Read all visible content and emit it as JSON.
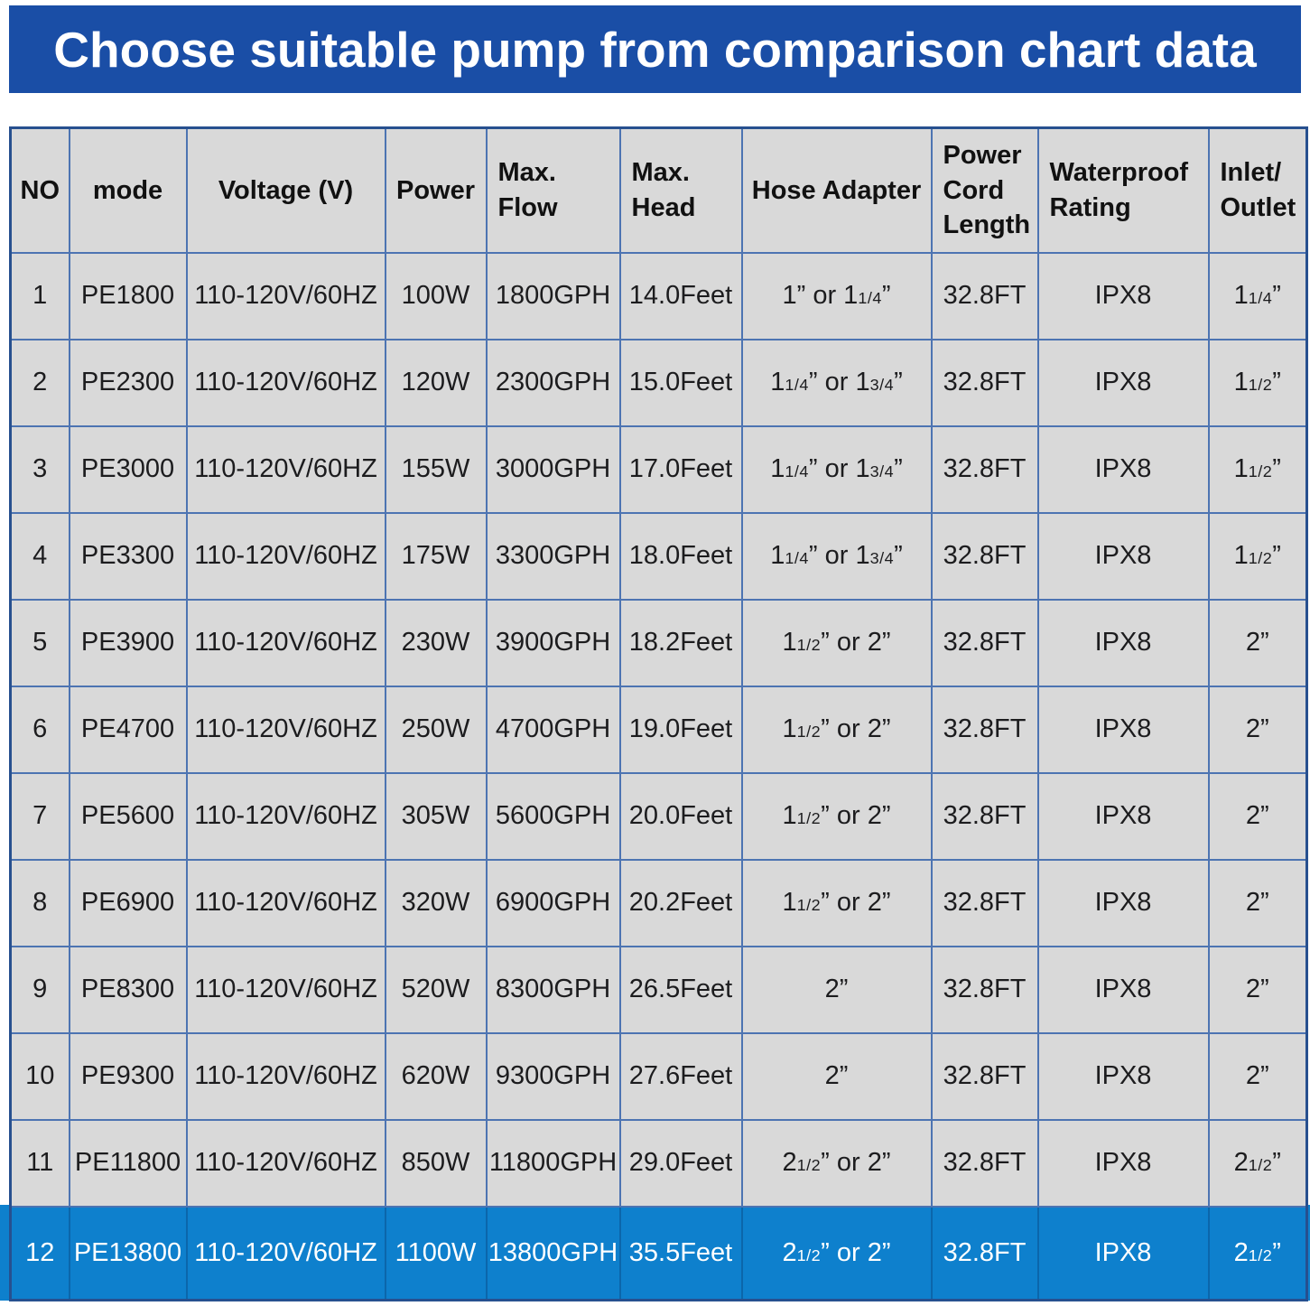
{
  "banner": {
    "title": "Choose suitable pump from comparison chart data"
  },
  "colors": {
    "banner_bg": "#1a4ea6",
    "banner_text": "#ffffff",
    "cell_bg": "#d9d9d9",
    "grid_line": "#4d74b2",
    "outer_border": "#27508f",
    "highlight_bg": "#0e80cd",
    "highlight_text": "#ffffff",
    "body_text": "#1c1c1e"
  },
  "chart_data": {
    "type": "table",
    "title": "Choose suitable pump from comparison chart data",
    "highlighted_row_no": "12",
    "columns": [
      {
        "label": "NO",
        "align": "center",
        "frac": false
      },
      {
        "label": "mode",
        "align": "center",
        "frac": false
      },
      {
        "label": "Voltage (V)",
        "align": "center",
        "frac": false
      },
      {
        "label": "Power",
        "align": "center",
        "frac": false
      },
      {
        "label": "Max.\nFlow",
        "align": "left",
        "frac": false
      },
      {
        "label": "Max.\nHead",
        "align": "left",
        "frac": false
      },
      {
        "label": "Hose Adapter",
        "align": "center",
        "frac": true
      },
      {
        "label": "Power\nCord\nLength",
        "align": "left",
        "frac": false
      },
      {
        "label": "Waterproof\nRating",
        "align": "left",
        "frac": false
      },
      {
        "label": "Inlet/\nOutlet",
        "align": "left",
        "frac": true
      }
    ],
    "rows": [
      {
        "highlight": false,
        "cells": [
          "1",
          "PE1800",
          "110-120V/60HZ",
          "100W",
          "1800GPH",
          "14.0Feet",
          "1” or 11/4”",
          "32.8FT",
          "IPX8",
          "11/4”"
        ]
      },
      {
        "highlight": false,
        "cells": [
          "2",
          "PE2300",
          "110-120V/60HZ",
          "120W",
          "2300GPH",
          "15.0Feet",
          "11/4” or 13/4”",
          "32.8FT",
          "IPX8",
          "11/2”"
        ]
      },
      {
        "highlight": false,
        "cells": [
          "3",
          "PE3000",
          "110-120V/60HZ",
          "155W",
          "3000GPH",
          "17.0Feet",
          "11/4” or 13/4”",
          "32.8FT",
          "IPX8",
          "11/2”"
        ]
      },
      {
        "highlight": false,
        "cells": [
          "4",
          "PE3300",
          "110-120V/60HZ",
          "175W",
          "3300GPH",
          "18.0Feet",
          "11/4” or 13/4”",
          "32.8FT",
          "IPX8",
          "11/2”"
        ]
      },
      {
        "highlight": false,
        "cells": [
          "5",
          "PE3900",
          "110-120V/60HZ",
          "230W",
          "3900GPH",
          "18.2Feet",
          "11/2” or 2”",
          "32.8FT",
          "IPX8",
          "2”"
        ]
      },
      {
        "highlight": false,
        "cells": [
          "6",
          "PE4700",
          "110-120V/60HZ",
          "250W",
          "4700GPH",
          "19.0Feet",
          "11/2” or 2”",
          "32.8FT",
          "IPX8",
          "2”"
        ]
      },
      {
        "highlight": false,
        "cells": [
          "7",
          "PE5600",
          "110-120V/60HZ",
          "305W",
          "5600GPH",
          "20.0Feet",
          "11/2” or 2”",
          "32.8FT",
          "IPX8",
          "2”"
        ]
      },
      {
        "highlight": false,
        "cells": [
          "8",
          "PE6900",
          "110-120V/60HZ",
          "320W",
          "6900GPH",
          "20.2Feet",
          "11/2” or 2”",
          "32.8FT",
          "IPX8",
          "2”"
        ]
      },
      {
        "highlight": false,
        "cells": [
          "9",
          "PE8300",
          "110-120V/60HZ",
          "520W",
          "8300GPH",
          "26.5Feet",
          "2”",
          "32.8FT",
          "IPX8",
          "2”"
        ]
      },
      {
        "highlight": false,
        "cells": [
          "10",
          "PE9300",
          "110-120V/60HZ",
          "620W",
          "9300GPH",
          "27.6Feet",
          "2”",
          "32.8FT",
          "IPX8",
          "2”"
        ]
      },
      {
        "highlight": false,
        "cells": [
          "11",
          "PE11800",
          "110-120V/60HZ",
          "850W",
          "11800GPH",
          "29.0Feet",
          "21/2” or 2”",
          "32.8FT",
          "IPX8",
          "21/2”"
        ]
      },
      {
        "highlight": true,
        "cells": [
          "12",
          "PE13800",
          "110-120V/60HZ",
          "1100W",
          "13800GPH",
          "35.5Feet",
          "21/2” or 2”",
          "32.8FT",
          "IPX8",
          "21/2”"
        ]
      }
    ]
  }
}
